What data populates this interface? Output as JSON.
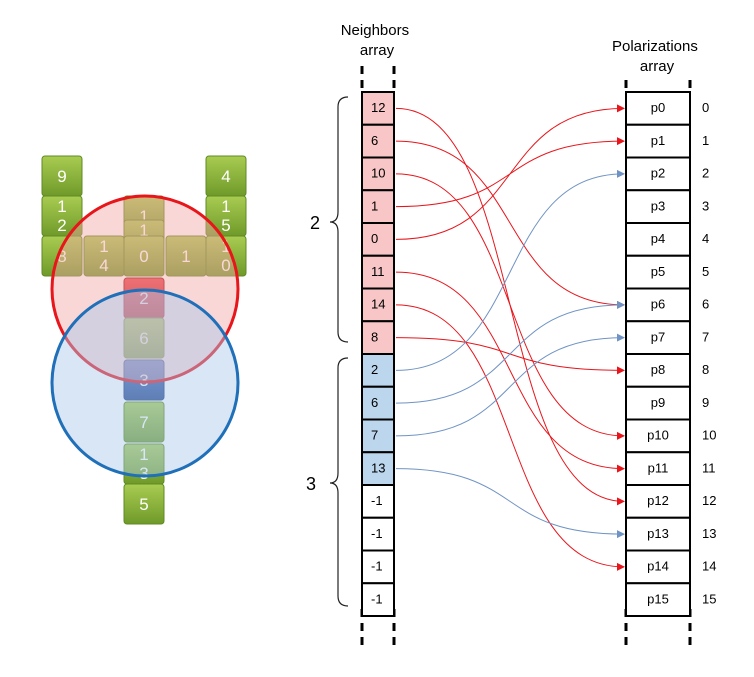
{
  "headers": {
    "neighbors": [
      "Neighbors",
      "array"
    ],
    "polarizations": [
      "Polarizations",
      "array"
    ]
  },
  "groups": [
    {
      "label": "2"
    },
    {
      "label": "3"
    }
  ],
  "neighbors": [
    "12",
    "6",
    "10",
    "1",
    "0",
    "11",
    "14",
    "8",
    "2",
    "6",
    "7",
    "13",
    "-1",
    "-1",
    "-1",
    "-1"
  ],
  "neighbor_kinds": [
    "a",
    "a",
    "a",
    "a",
    "a",
    "a",
    "a",
    "a",
    "b",
    "b",
    "b",
    "b",
    "none",
    "none",
    "none",
    "none"
  ],
  "polarizations": [
    "p0",
    "p1",
    "p2",
    "p3",
    "p4",
    "p5",
    "p6",
    "p7",
    "p8",
    "p9",
    "p10",
    "p11",
    "p12",
    "p13",
    "p14",
    "p15"
  ],
  "indices": [
    "0",
    "1",
    "2",
    "3",
    "4",
    "5",
    "6",
    "7",
    "8",
    "9",
    "10",
    "11",
    "12",
    "13",
    "14",
    "15"
  ],
  "cubes": [
    {
      "label": "9",
      "kind": "green"
    },
    {
      "label": "1\n2",
      "kind": "green"
    },
    {
      "label": "8",
      "kind": "green"
    },
    {
      "label": "1\n4",
      "kind": "green"
    },
    {
      "label": "1",
      "kind": "green"
    },
    {
      "label": "1\n1",
      "kind": "green"
    },
    {
      "label": "0",
      "kind": "green"
    },
    {
      "label": "1",
      "kind": "green"
    },
    {
      "label": "4",
      "kind": "green"
    },
    {
      "label": "1\n5",
      "kind": "green"
    },
    {
      "label": "1\n0",
      "kind": "green"
    },
    {
      "label": "2",
      "kind": "red"
    },
    {
      "label": "6",
      "kind": "green"
    },
    {
      "label": "3",
      "kind": "blue"
    },
    {
      "label": "7",
      "kind": "green"
    },
    {
      "label": "1\n3",
      "kind": "green"
    },
    {
      "label": "5",
      "kind": "green"
    }
  ],
  "colors": {
    "red_circle": "#e8151b",
    "blue_circle": "#1f6fb9",
    "red_cell": "#f8c6c6",
    "blue_cell": "#bcd6ee",
    "red_arrow": "#e8151b",
    "blue_arrow": "#6f93c4",
    "green_cube": "#8db33a",
    "red_cube": "#d9232e",
    "blue_cube": "#2f55a6"
  }
}
